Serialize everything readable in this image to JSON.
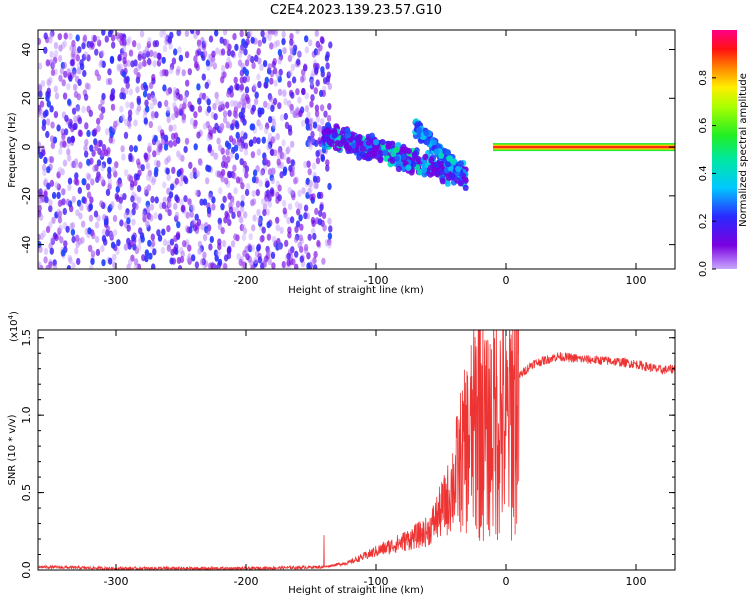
{
  "title": "C2E4.2023.139.23.57.G10",
  "colors": {
    "snr_line": "#ee3333",
    "axis": "#000000",
    "background": "#ffffff"
  },
  "chart_data": [
    {
      "type": "heatmap",
      "name": "spectrogram",
      "xlabel": "Height of straight line (km)",
      "ylabel": "Frequency (Hz)",
      "xlim": [
        -360,
        130
      ],
      "ylim": [
        -50,
        48
      ],
      "xticks": [
        -300,
        -200,
        -100,
        0,
        100
      ],
      "yticks": [
        -40,
        -20,
        0,
        20,
        40
      ],
      "colorbar": {
        "label": "Normalized spectral amplitude",
        "range": [
          0.0,
          1.0
        ],
        "ticks": [
          0.0,
          0.2,
          0.4,
          0.6,
          0.8
        ],
        "colormap": "rainbow (violet-blue-cyan-green-yellow-red-magenta)"
      },
      "features": [
        {
          "region": "noise",
          "x_range": [
            -360,
            -135
          ],
          "y_range": [
            -50,
            48
          ],
          "amplitude": [
            0.0,
            0.25
          ]
        },
        {
          "region": "diffuse cluster",
          "x_range": [
            -140,
            -30
          ],
          "y_center_start": 5,
          "y_center_end": -12,
          "amplitude": [
            0.1,
            0.5
          ]
        },
        {
          "region": "upper branch",
          "x_range": [
            -70,
            -35
          ],
          "y_center_start": 8,
          "y_center_end": -10,
          "amplitude": [
            0.2,
            0.45
          ]
        },
        {
          "region": "carrier line",
          "x_range": [
            -10,
            130
          ],
          "y": 0,
          "amplitude": [
            0.8,
            1.0
          ]
        }
      ]
    },
    {
      "type": "line",
      "name": "snr",
      "xlabel": "Height of straight line (km)",
      "ylabel": "SNR (10 * v/v)",
      "scale_label": "(x10",
      "scale_exponent": "4",
      "scale_suffix": ")",
      "xlim": [
        -360,
        130
      ],
      "ylim": [
        0.0,
        1.55
      ],
      "xticks": [
        -300,
        -200,
        -100,
        0,
        100
      ],
      "yticks": [
        0.0,
        0.5,
        1.0,
        1.5
      ],
      "ytick_labels": [
        "0.0",
        "0.5",
        "1.0",
        "1.5"
      ],
      "series": [
        {
          "x": [
            -360,
            -300,
            -200,
            -140,
            -120,
            -100,
            -80,
            -60,
            -45,
            -35,
            -25,
            -20,
            -15,
            -10,
            -5,
            0,
            5,
            10,
            20,
            40,
            60,
            80,
            100,
            120,
            130
          ],
          "y": [
            0.02,
            0.01,
            0.01,
            0.02,
            0.05,
            0.12,
            0.18,
            0.25,
            0.45,
            0.7,
            0.9,
            1.1,
            0.85,
            0.95,
            1.0,
            0.9,
            1.05,
            1.25,
            1.33,
            1.38,
            1.36,
            1.35,
            1.33,
            1.29,
            1.3
          ]
        }
      ]
    }
  ]
}
